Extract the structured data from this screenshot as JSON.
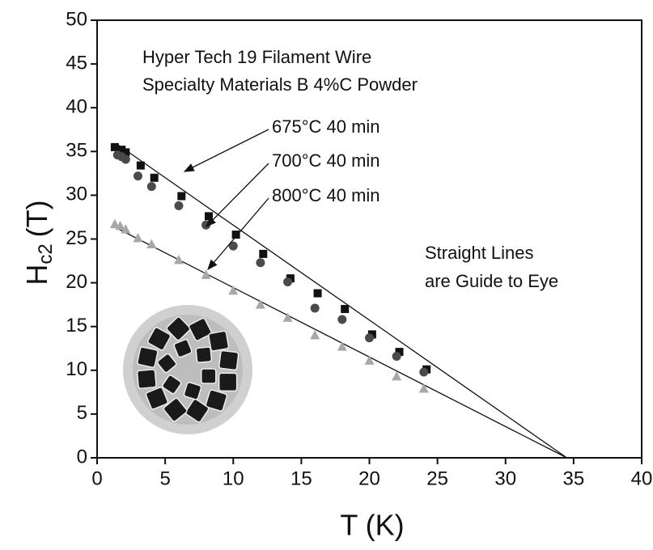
{
  "chart_data": {
    "type": "scatter",
    "texts": [
      "Hyper Tech 19 Filament Wire",
      "Specialty Materials B 4%C Powder",
      "Straight Lines",
      "are Guide to Eye"
    ],
    "x_label": "T (K)",
    "y_label": {
      "main": "H",
      "sub": "c2",
      "unit": "(T)"
    },
    "xlim": [
      0,
      40
    ],
    "xticks": [
      0,
      5,
      10,
      15,
      20,
      25,
      30,
      35,
      40
    ],
    "ylim": [
      0,
      50
    ],
    "yticks": [
      0,
      5,
      10,
      15,
      20,
      25,
      30,
      35,
      40,
      45,
      50
    ],
    "series": [
      {
        "name": "675°C 40 min",
        "marker": "square",
        "color": "#111111",
        "x": [
          1.3,
          1.8,
          2.1,
          3.2,
          4.2,
          6.2,
          8.2,
          10.2,
          12.2,
          14.2,
          16.2,
          18.2,
          20.2,
          22.2,
          24.2
        ],
        "values": [
          35.5,
          35.2,
          34.9,
          33.4,
          32,
          29.9,
          27.6,
          25.5,
          23.3,
          20.5,
          18.8,
          17,
          14.1,
          12.1,
          10.1
        ]
      },
      {
        "name": "700°C 40 min",
        "marker": "circle",
        "color": "#4a4a4a",
        "x": [
          1.5,
          1.8,
          2.1,
          3,
          4,
          6,
          8,
          10,
          12,
          14,
          16,
          18,
          20,
          22,
          24
        ],
        "values": [
          34.6,
          34.4,
          34.1,
          32.2,
          31,
          28.8,
          26.6,
          24.2,
          22.3,
          20.1,
          17.1,
          15.8,
          13.7,
          11.6,
          9.8
        ]
      },
      {
        "name": "800°C 40 min",
        "marker": "triangle",
        "color": "#a8a8a8",
        "x": [
          1.3,
          1.7,
          2.1,
          3,
          4,
          6,
          8,
          10,
          12,
          14,
          16,
          18,
          20,
          22,
          24
        ],
        "values": [
          26.7,
          26.5,
          26.1,
          25.1,
          24.4,
          22.6,
          20.9,
          19.1,
          17.5,
          16,
          14,
          12.7,
          11.1,
          9.3,
          7.9
        ]
      }
    ],
    "guide_lines": [
      {
        "x": [
          1.6,
          34.5
        ],
        "values": [
          35.7,
          0
        ]
      },
      {
        "x": [
          1.5,
          34.5
        ],
        "values": [
          26.2,
          0
        ]
      }
    ]
  }
}
